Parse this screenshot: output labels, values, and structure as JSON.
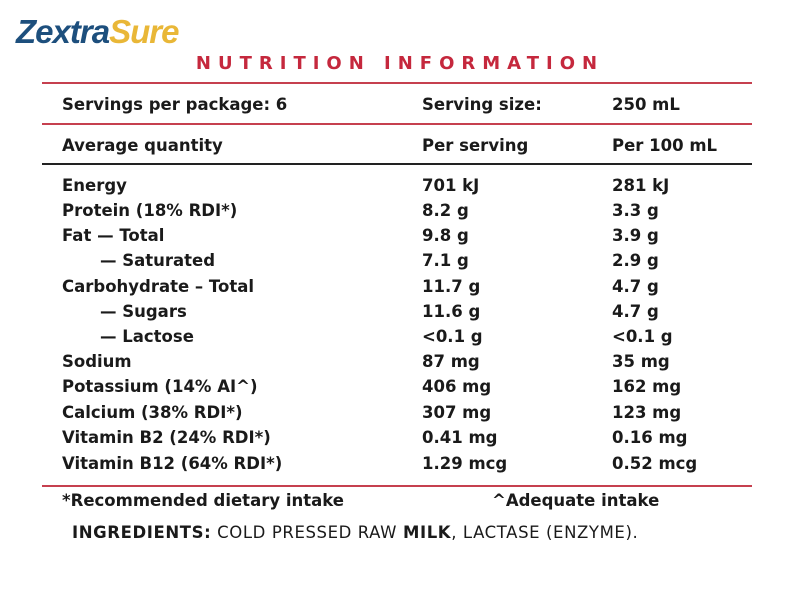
{
  "brand": {
    "part1": "Zextra",
    "part2": "Sure",
    "primary_color": "#1d4f7d",
    "accent_color": "#e9b737"
  },
  "title": "NUTRITION INFORMATION",
  "title_color": "#c5283d",
  "servings": {
    "label": "Servings per package: 6",
    "size_label": "Serving size:",
    "size_value": "250 mL"
  },
  "header": {
    "quantity": "Average quantity",
    "per_serving": "Per serving",
    "per_100": "Per 100 mL"
  },
  "rows": [
    {
      "name": "Energy",
      "per_serving": "701 kJ",
      "per_100": "281 kJ"
    },
    {
      "name": "Protein (18% RDI*)",
      "per_serving": "8.2 g",
      "per_100": "3.3 g"
    },
    {
      "name": "Fat — Total",
      "per_serving": "9.8 g",
      "per_100": "3.9 g"
    },
    {
      "name": "— Saturated",
      "per_serving": "7.1 g",
      "per_100": "2.9 g"
    },
    {
      "name": "Carbohydrate – Total",
      "per_serving": "11.7 g",
      "per_100": "4.7 g"
    },
    {
      "name": "— Sugars",
      "per_serving": "11.6 g",
      "per_100": "4.7 g"
    },
    {
      "name": "— Lactose",
      "per_serving": "<0.1 g",
      "per_100": "<0.1 g"
    },
    {
      "name": "Sodium",
      "per_serving": "87 mg",
      "per_100": "35 mg"
    },
    {
      "name": "Potassium (14% AI^)",
      "per_serving": "406 mg",
      "per_100": "162 mg"
    },
    {
      "name": "Calcium (38% RDI*)",
      "per_serving": "307 mg",
      "per_100": "123 mg"
    },
    {
      "name": "Vitamin B2 (24% RDI*)",
      "per_serving": "0.41 mg",
      "per_100": "0.16 mg"
    },
    {
      "name": "Vitamin B12 (64% RDI*)",
      "per_serving": "1.29 mcg",
      "per_100": "0.52 mcg"
    }
  ],
  "footnotes": {
    "rdi": "*Recommended dietary intake",
    "ai": "^Adequate intake"
  },
  "ingredients": {
    "label": "INGREDIENTS:",
    "text1": " COLD PRESSED RAW ",
    "bold": "MILK",
    "text2": ", LACTASE (ENZYME)."
  }
}
